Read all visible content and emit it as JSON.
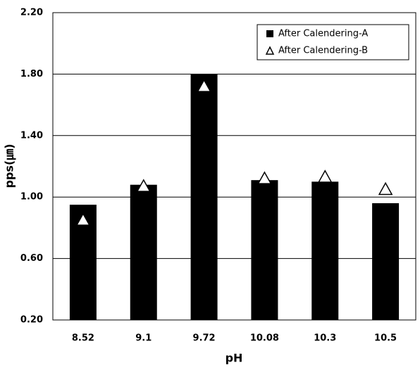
{
  "chart_data": {
    "type": "bar",
    "x_label": "pH",
    "y_label": "pps(㎛)",
    "categories": [
      "8.52",
      "9.1",
      "9.72",
      "10.08",
      "10.3",
      "10.5"
    ],
    "series": [
      {
        "name": "After Calendering-A",
        "type": "bar",
        "color": "#000000",
        "values": [
          0.95,
          1.08,
          1.8,
          1.11,
          1.1,
          0.96
        ]
      },
      {
        "name": "After Calendering-B",
        "type": "scatter",
        "marker": "triangle",
        "color": "#ffffff",
        "values": [
          0.85,
          1.07,
          1.72,
          1.12,
          1.13,
          1.05
        ]
      }
    ],
    "ylim": [
      0.2,
      2.2
    ],
    "yticks": [
      {
        "value": 0.2,
        "label": "0.20"
      },
      {
        "value": 0.6,
        "label": "0.60"
      },
      {
        "value": 1.0,
        "label": "1.00"
      },
      {
        "value": 1.4,
        "label": "1.40"
      },
      {
        "value": 1.8,
        "label": "1.80"
      },
      {
        "value": 2.2,
        "label": "2.20"
      }
    ],
    "grid": true,
    "legend": "top-right"
  }
}
